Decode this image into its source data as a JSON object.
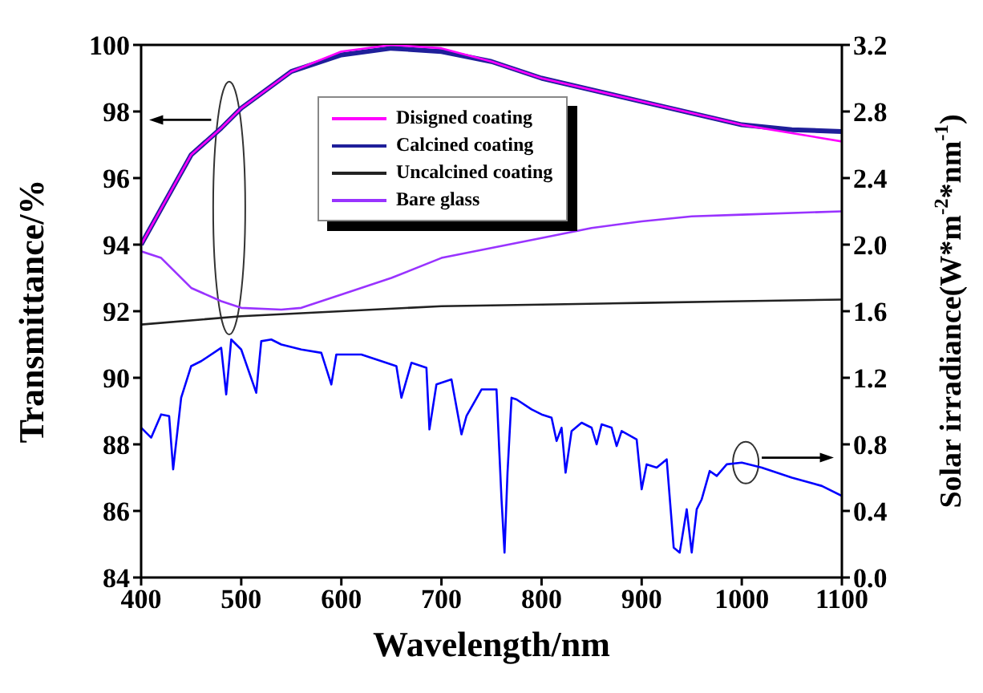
{
  "chart_data": {
    "type": "line",
    "xlabel": "Wavelength/nm",
    "ylabel": "Transmittance/%",
    "y2label": "Solar irradiance(W*m$^{-2}$*nm$^{-1}$)",
    "xlim": [
      400,
      1100
    ],
    "xticks": [
      400,
      500,
      600,
      700,
      800,
      900,
      1000,
      1100
    ],
    "ylim": [
      84,
      100
    ],
    "yticks": [
      84,
      86,
      88,
      90,
      92,
      94,
      96,
      98,
      100
    ],
    "y2lim": [
      0,
      3.2
    ],
    "y2ticks": [
      {
        "value": 0,
        "label": "0.0"
      },
      0.4,
      0.8,
      1.2,
      1.6,
      {
        "value": 2,
        "label": "2.0"
      },
      2.4,
      2.8,
      3.2
    ],
    "legend": "top",
    "grid": false,
    "marker": "none",
    "line_style": "solid",
    "series": [
      {
        "name": "Disigned coating",
        "color": "#ff00ff",
        "x": [
          400,
          450,
          480,
          500,
          550,
          600,
          650,
          700,
          750,
          800,
          900,
          1000,
          1100
        ],
        "values": [
          94.0,
          96.7,
          97.5,
          98.1,
          99.2,
          99.8,
          100.0,
          99.9,
          99.5,
          99.0,
          98.3,
          97.6,
          97.1
        ]
      },
      {
        "name": "Calcined coating",
        "color": "#1f1f9a",
        "x": [
          400,
          450,
          480,
          500,
          550,
          600,
          650,
          700,
          750,
          800,
          900,
          1000,
          1050,
          1100
        ],
        "values": [
          94.0,
          96.7,
          97.5,
          98.1,
          99.2,
          99.7,
          99.9,
          99.8,
          99.5,
          99.0,
          98.3,
          97.6,
          97.45,
          97.4
        ]
      },
      {
        "name": "Uncalcined coating",
        "color": "#222222",
        "x": [
          400,
          500,
          600,
          700,
          800,
          900,
          1000,
          1100
        ],
        "values": [
          91.6,
          91.85,
          92.0,
          92.15,
          92.2,
          92.25,
          92.3,
          92.35
        ]
      },
      {
        "name": "Bare glass",
        "color": "#9933ff",
        "x": [
          400,
          420,
          450,
          480,
          500,
          540,
          560,
          600,
          650,
          700,
          800,
          850,
          900,
          950,
          1000,
          1100
        ],
        "values": [
          93.8,
          93.6,
          92.7,
          92.3,
          92.1,
          92.05,
          92.1,
          92.5,
          93.0,
          93.6,
          94.2,
          94.5,
          94.7,
          94.85,
          94.9,
          95.0
        ]
      },
      {
        "color": "#0000ff",
        "axis": "y2",
        "x": [
          400,
          410,
          420,
          428,
          432,
          440,
          450,
          460,
          480,
          485,
          490,
          500,
          515,
          520,
          530,
          540,
          560,
          580,
          590,
          595,
          620,
          640,
          655,
          660,
          670,
          685,
          688,
          695,
          710,
          720,
          725,
          740,
          755,
          760,
          763,
          766,
          770,
          775,
          790,
          800,
          810,
          815,
          820,
          824,
          830,
          840,
          850,
          855,
          860,
          870,
          875,
          880,
          895,
          900,
          905,
          915,
          925,
          932,
          938,
          945,
          950,
          955,
          960,
          968,
          975,
          985,
          1000,
          1020,
          1050,
          1080,
          1100
        ],
        "values": [
          0.9,
          0.84,
          0.98,
          0.97,
          0.65,
          1.08,
          1.27,
          1.3,
          1.38,
          1.1,
          1.43,
          1.37,
          1.11,
          1.42,
          1.43,
          1.4,
          1.37,
          1.35,
          1.16,
          1.34,
          1.34,
          1.3,
          1.27,
          1.08,
          1.29,
          1.26,
          0.89,
          1.16,
          1.19,
          0.86,
          0.97,
          1.13,
          1.13,
          0.47,
          0.15,
          0.63,
          1.08,
          1.07,
          1.01,
          0.98,
          0.96,
          0.82,
          0.9,
          0.63,
          0.88,
          0.93,
          0.9,
          0.8,
          0.92,
          0.9,
          0.79,
          0.88,
          0.83,
          0.53,
          0.68,
          0.66,
          0.71,
          0.18,
          0.15,
          0.41,
          0.15,
          0.41,
          0.47,
          0.64,
          0.61,
          0.68,
          0.69,
          0.66,
          0.6,
          0.55,
          0.49
        ]
      }
    ]
  }
}
